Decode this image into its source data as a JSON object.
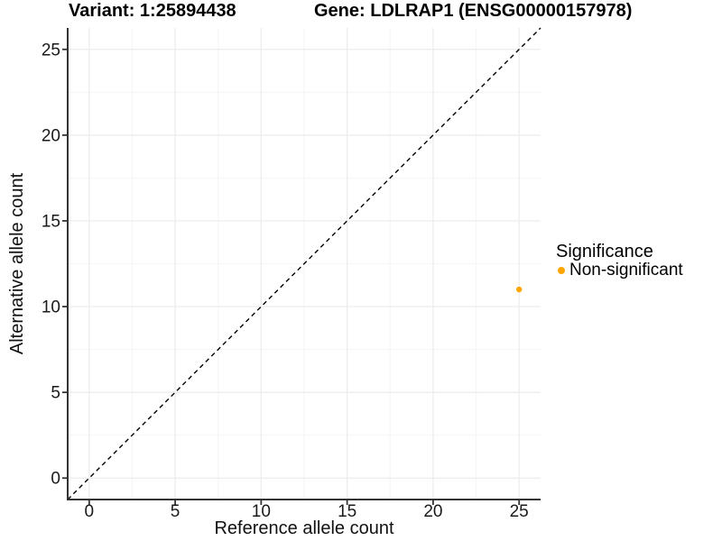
{
  "figure": {
    "titles": {
      "variant": "Variant: 1:25894438",
      "gene": "Gene: LDLRAP1 (ENSG00000157978)"
    },
    "legend": {
      "title": "Significance",
      "items": [
        {
          "label": "Non-significant",
          "color": "#FFA500"
        }
      ]
    }
  },
  "chart_data": {
    "type": "scatter",
    "title": "Variant: 1:25894438  |  Gene: LDLRAP1 (ENSG00000157978)",
    "xlabel": "Reference allele count",
    "ylabel": "Alternative allele count",
    "xlim": [
      -1.25,
      26.25
    ],
    "ylim": [
      -1.25,
      26.25
    ],
    "x_ticks": [
      0,
      5,
      10,
      15,
      20,
      25
    ],
    "y_ticks": [
      0,
      5,
      10,
      15,
      20,
      25
    ],
    "x_minor_ticks": [
      2.5,
      7.5,
      12.5,
      17.5,
      22.5
    ],
    "y_minor_ticks": [
      2.5,
      7.5,
      12.5,
      17.5,
      22.5
    ],
    "grid": "major+minor",
    "legend_position": "right",
    "reference_line": {
      "type": "identity y=x",
      "style": "dashed",
      "color": "#000000"
    },
    "series": [
      {
        "name": "Non-significant",
        "color": "#FFA500",
        "points": [
          {
            "x": 25,
            "y": 11
          }
        ]
      }
    ],
    "colors": {
      "major_grid": "#EBEBEB",
      "minor_grid": "#F5F5F5",
      "axis_line": "#333333",
      "tick_text": "#1a1a1a",
      "point": "#FFA500"
    }
  }
}
